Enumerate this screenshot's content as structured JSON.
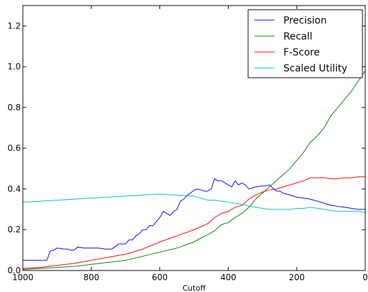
{
  "chart_data": {
    "type": "line",
    "title": "",
    "xlabel": "Cutoff",
    "ylabel": "",
    "xlim": [
      1000,
      0
    ],
    "ylim": [
      0,
      1.3
    ],
    "x_reversed": true,
    "x_ticks": [
      1000,
      800,
      600,
      400,
      200,
      0
    ],
    "x_tick_labels": [
      "1000",
      "800",
      "600",
      "400",
      "200",
      "0"
    ],
    "y_ticks": [
      0.0,
      0.2,
      0.4,
      0.6,
      0.8,
      1.0,
      1.2
    ],
    "y_tick_labels": [
      "0.0",
      "0.2",
      "0.4",
      "0.6",
      "0.8",
      "1.0",
      "1.2"
    ],
    "grid": false,
    "legend_position": "top-right",
    "series": [
      {
        "name": "Precision",
        "color": "#0000ff",
        "x": [
          1000,
          950,
          930,
          920,
          910,
          900,
          880,
          870,
          860,
          850,
          840,
          820,
          800,
          780,
          760,
          740,
          720,
          700,
          690,
          680,
          670,
          660,
          650,
          640,
          630,
          620,
          610,
          600,
          590,
          580,
          570,
          560,
          550,
          540,
          530,
          520,
          510,
          500,
          490,
          480,
          470,
          460,
          450,
          440,
          430,
          420,
          410,
          400,
          390,
          380,
          370,
          360,
          350,
          340,
          330,
          320,
          300,
          290,
          280,
          270,
          260,
          250,
          240,
          220,
          200,
          180,
          160,
          140,
          120,
          100,
          80,
          60,
          40,
          20,
          0
        ],
        "y": [
          0.05,
          0.05,
          0.05,
          0.095,
          0.1,
          0.11,
          0.105,
          0.105,
          0.1,
          0.1,
          0.115,
          0.11,
          0.11,
          0.11,
          0.105,
          0.105,
          0.13,
          0.13,
          0.15,
          0.15,
          0.17,
          0.18,
          0.2,
          0.2,
          0.22,
          0.22,
          0.24,
          0.26,
          0.29,
          0.28,
          0.27,
          0.29,
          0.3,
          0.34,
          0.35,
          0.37,
          0.38,
          0.395,
          0.4,
          0.395,
          0.39,
          0.39,
          0.4,
          0.45,
          0.44,
          0.44,
          0.43,
          0.42,
          0.41,
          0.44,
          0.42,
          0.43,
          0.42,
          0.4,
          0.405,
          0.41,
          0.415,
          0.415,
          0.42,
          0.405,
          0.39,
          0.39,
          0.38,
          0.37,
          0.36,
          0.355,
          0.35,
          0.34,
          0.33,
          0.32,
          0.315,
          0.31,
          0.305,
          0.3,
          0.3
        ]
      },
      {
        "name": "Recall",
        "color": "#008000",
        "x": [
          1000,
          950,
          900,
          850,
          800,
          750,
          700,
          650,
          600,
          550,
          500,
          480,
          460,
          440,
          430,
          420,
          400,
          380,
          360,
          340,
          320,
          300,
          280,
          260,
          240,
          220,
          200,
          180,
          160,
          140,
          120,
          100,
          80,
          60,
          40,
          20,
          0
        ],
        "y": [
          0.005,
          0.01,
          0.015,
          0.02,
          0.03,
          0.04,
          0.05,
          0.07,
          0.09,
          0.11,
          0.14,
          0.16,
          0.175,
          0.195,
          0.21,
          0.225,
          0.235,
          0.26,
          0.28,
          0.31,
          0.35,
          0.38,
          0.41,
          0.44,
          0.47,
          0.5,
          0.54,
          0.58,
          0.63,
          0.66,
          0.7,
          0.76,
          0.8,
          0.84,
          0.88,
          0.93,
          0.98
        ]
      },
      {
        "name": "F-Score",
        "color": "#ff0000",
        "x": [
          1000,
          950,
          900,
          850,
          800,
          750,
          700,
          650,
          600,
          550,
          500,
          460,
          440,
          420,
          400,
          380,
          360,
          340,
          320,
          300,
          280,
          260,
          240,
          220,
          200,
          180,
          160,
          140,
          120,
          100,
          80,
          60,
          40,
          20,
          0
        ],
        "y": [
          0.01,
          0.015,
          0.025,
          0.035,
          0.05,
          0.065,
          0.08,
          0.105,
          0.14,
          0.17,
          0.2,
          0.23,
          0.26,
          0.28,
          0.29,
          0.31,
          0.32,
          0.35,
          0.37,
          0.385,
          0.395,
          0.4,
          0.41,
          0.42,
          0.43,
          0.44,
          0.455,
          0.455,
          0.455,
          0.45,
          0.45,
          0.455,
          0.455,
          0.46,
          0.46
        ]
      },
      {
        "name": "Scaled Utility",
        "color": "#00bfbf",
        "x": [
          1000,
          950,
          900,
          850,
          800,
          750,
          700,
          650,
          600,
          550,
          500,
          480,
          460,
          440,
          420,
          400,
          380,
          360,
          340,
          320,
          300,
          280,
          260,
          240,
          220,
          200,
          180,
          160,
          140,
          120,
          100,
          80,
          60,
          40,
          20,
          0
        ],
        "y": [
          0.335,
          0.34,
          0.345,
          0.35,
          0.355,
          0.36,
          0.365,
          0.37,
          0.375,
          0.37,
          0.365,
          0.355,
          0.345,
          0.345,
          0.34,
          0.335,
          0.33,
          0.325,
          0.315,
          0.31,
          0.305,
          0.3,
          0.3,
          0.3,
          0.3,
          0.305,
          0.305,
          0.31,
          0.305,
          0.3,
          0.295,
          0.29,
          0.29,
          0.29,
          0.29,
          0.285
        ]
      }
    ]
  }
}
